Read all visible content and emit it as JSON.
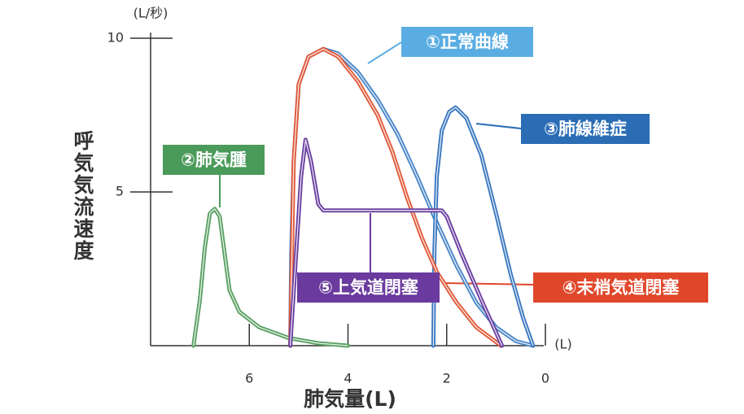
{
  "chart_data": {
    "type": "line",
    "y_unit": "(L/秒)",
    "y_label": "呼気気流速度",
    "x_label": "肺気量(L)",
    "x_unit": "(L)",
    "xlim": [
      8,
      0
    ],
    "ylim": [
      0,
      10
    ],
    "xticks": [
      6,
      4,
      2,
      0
    ],
    "yticks": [
      5,
      10
    ],
    "series": [
      {
        "name": "①正常曲線",
        "color": "#4a86c8",
        "label_color": "#5aade2",
        "x": [
          5.17,
          5.15,
          5.1,
          5.0,
          4.8,
          4.5,
          4.2,
          3.8,
          3.4,
          3.0,
          2.6,
          2.2,
          1.8,
          1.4,
          1.0,
          0.6,
          0.25
        ],
        "values": [
          0,
          3,
          6,
          8.5,
          9.4,
          9.65,
          9.5,
          8.9,
          8.0,
          6.9,
          5.5,
          4.0,
          2.6,
          1.4,
          0.6,
          0.15,
          0
        ]
      },
      {
        "name": "②肺気腫",
        "color": "#5aa062",
        "label_color": "#4a9a5a",
        "x": [
          7.13,
          7.0,
          6.9,
          6.8,
          6.7,
          6.6,
          6.5,
          6.4,
          6.2,
          5.8,
          5.2,
          4.6,
          4.0
        ],
        "values": [
          0,
          1.5,
          3.2,
          4.3,
          4.45,
          4.2,
          3.0,
          1.8,
          1.1,
          0.6,
          0.25,
          0.08,
          0
        ]
      },
      {
        "name": "③肺線維症",
        "color": "#3b78c0",
        "label_color": "#2a6db5",
        "x": [
          2.27,
          2.25,
          2.2,
          2.1,
          1.95,
          1.82,
          1.6,
          1.3,
          1.0,
          0.7,
          0.45,
          0.25
        ],
        "values": [
          0,
          3,
          5.5,
          7.0,
          7.6,
          7.75,
          7.4,
          6.2,
          4.3,
          2.3,
          0.9,
          0
        ]
      },
      {
        "name": "④末梢気道閉塞",
        "color": "#e05a3a",
        "label_color": "#e0472a",
        "x": [
          5.17,
          5.1,
          5.0,
          4.8,
          4.5,
          4.2,
          3.8,
          3.4,
          3.1,
          2.8,
          2.5,
          2.2,
          1.8,
          1.4,
          0.9
        ],
        "values": [
          0,
          6,
          8.5,
          9.4,
          9.65,
          9.4,
          8.6,
          7.5,
          6.3,
          4.8,
          3.5,
          2.4,
          1.4,
          0.6,
          0
        ]
      },
      {
        "name": "⑤上気道閉塞",
        "color": "#6a3fa0",
        "label_color": "#6a3a9e",
        "x": [
          5.17,
          5.05,
          4.95,
          4.86,
          4.75,
          4.6,
          4.5,
          2.1,
          2.0,
          1.7,
          1.3,
          0.88
        ],
        "values": [
          0,
          3,
          5.5,
          6.7,
          6.0,
          4.6,
          4.4,
          4.4,
          4.2,
          3.0,
          1.5,
          0
        ]
      }
    ]
  }
}
